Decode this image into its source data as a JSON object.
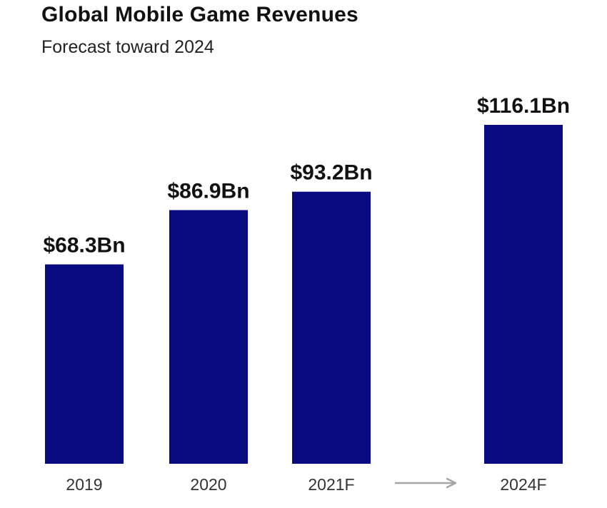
{
  "title": "Global Mobile Game Revenues",
  "subtitle": "Forecast toward 2024",
  "colors": {
    "bar": "#080a7f",
    "arrow": "#a6a6a6",
    "text": "#111111"
  },
  "chart_data": {
    "type": "bar",
    "title": "Global Mobile Game Revenues",
    "subtitle": "Forecast toward 2024",
    "categories": [
      "2019",
      "2020",
      "2021F",
      "2024F"
    ],
    "values": [
      68.3,
      86.9,
      93.2,
      116.1
    ],
    "value_labels": [
      "$68.3Bn",
      "$86.9Bn",
      "$93.2Bn",
      "$116.1Bn"
    ],
    "unit": "USD billions",
    "xlabel": "",
    "ylabel": "",
    "ylim": [
      0,
      116.1
    ],
    "grid": false,
    "legend": "none",
    "annotations": [
      {
        "type": "arrow",
        "from": "2021F",
        "to": "2024F"
      }
    ]
  }
}
